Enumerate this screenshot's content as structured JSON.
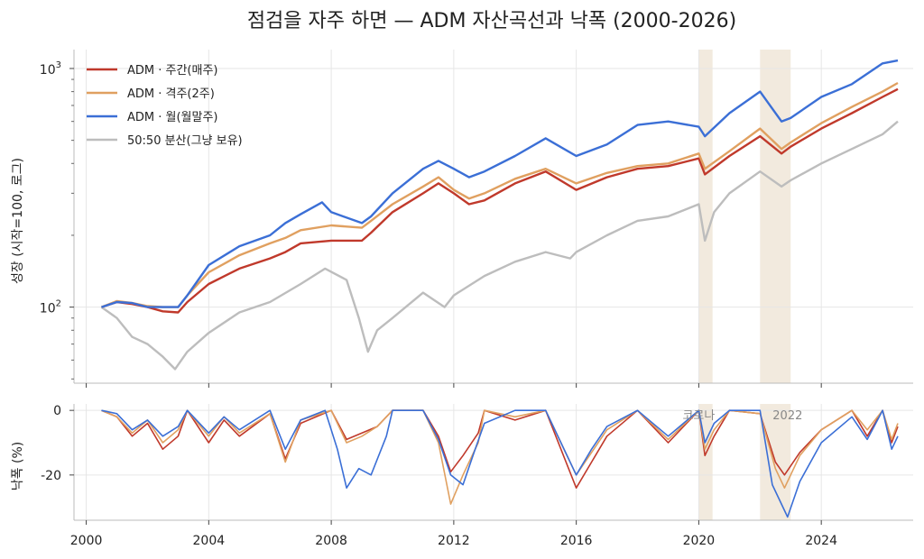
{
  "chart_data": [
    {
      "type": "line",
      "panel": "growth",
      "title": "점검을 자주 하면 — ADM 자산곡선과 낙폭 (2000-2026)",
      "ylabel": "성장 (시작=100, 로그)",
      "yscale": "log",
      "ylim": [
        48,
        1200
      ],
      "xlim": [
        1999.6,
        2027.0
      ],
      "x_ticks": [
        "2000",
        "2004",
        "2008",
        "2012",
        "2016",
        "2020",
        "2024"
      ],
      "y_ticks": [
        {
          "label": "10",
          "exp": "2",
          "value": 100
        },
        {
          "label": "10",
          "exp": "3",
          "value": 1000
        }
      ],
      "grid": true,
      "legend_position": "top-left",
      "shaded_periods": [
        [
          2020.0,
          2020.45
        ],
        [
          2022.0,
          2023.0
        ]
      ],
      "series": [
        {
          "name": "ADM · 주간(매주)",
          "color": "#c0392b",
          "x": [
            2000.5,
            2001.0,
            2001.5,
            2002.0,
            2002.5,
            2003.0,
            2003.3,
            2004.0,
            2005.0,
            2006.0,
            2006.5,
            2007.0,
            2008.0,
            2009.0,
            2009.3,
            2010.0,
            2011.0,
            2011.5,
            2012.0,
            2012.5,
            2013.0,
            2014.0,
            2015.0,
            2016.0,
            2017.0,
            2018.0,
            2019.0,
            2020.0,
            2020.2,
            2021.0,
            2022.0,
            2022.7,
            2023.0,
            2024.0,
            2025.0,
            2026.0,
            2026.5
          ],
          "y": [
            100,
            105,
            103,
            100,
            96,
            95,
            105,
            125,
            145,
            160,
            170,
            185,
            190,
            190,
            205,
            250,
            300,
            330,
            300,
            270,
            280,
            330,
            370,
            310,
            350,
            380,
            390,
            420,
            360,
            430,
            520,
            440,
            470,
            560,
            650,
            760,
            820
          ]
        },
        {
          "name": "ADM · 격주(2주)",
          "color": "#e0a060",
          "x": [
            2000.5,
            2001.0,
            2001.5,
            2002.0,
            2002.5,
            2003.0,
            2003.3,
            2004.0,
            2005.0,
            2006.0,
            2006.5,
            2007.0,
            2008.0,
            2009.0,
            2009.3,
            2010.0,
            2011.0,
            2011.5,
            2012.0,
            2012.5,
            2013.0,
            2014.0,
            2015.0,
            2016.0,
            2017.0,
            2018.0,
            2019.0,
            2020.0,
            2020.2,
            2021.0,
            2022.0,
            2022.7,
            2023.0,
            2024.0,
            2025.0,
            2026.0,
            2026.5
          ],
          "y": [
            100,
            106,
            104,
            101,
            100,
            100,
            112,
            140,
            165,
            185,
            195,
            210,
            220,
            215,
            230,
            270,
            320,
            350,
            310,
            285,
            300,
            345,
            380,
            330,
            365,
            390,
            400,
            440,
            380,
            450,
            560,
            460,
            490,
            590,
            690,
            800,
            870
          ]
        },
        {
          "name": "ADM · 월(월말주)",
          "color": "#3b6fd6",
          "x": [
            2000.5,
            2001.0,
            2001.5,
            2002.0,
            2002.5,
            2003.0,
            2003.3,
            2004.0,
            2005.0,
            2006.0,
            2006.5,
            2007.0,
            2007.7,
            2008.0,
            2009.0,
            2009.3,
            2010.0,
            2011.0,
            2011.5,
            2012.0,
            2012.5,
            2013.0,
            2014.0,
            2015.0,
            2016.0,
            2017.0,
            2018.0,
            2019.0,
            2020.0,
            2020.2,
            2021.0,
            2022.0,
            2022.7,
            2023.0,
            2024.0,
            2025.0,
            2026.0,
            2026.5
          ],
          "y": [
            100,
            105,
            104,
            100,
            100,
            100,
            112,
            150,
            180,
            200,
            225,
            245,
            275,
            250,
            225,
            240,
            300,
            380,
            410,
            380,
            350,
            370,
            430,
            510,
            430,
            480,
            580,
            600,
            570,
            520,
            650,
            800,
            600,
            620,
            760,
            860,
            1050,
            1080
          ]
        },
        {
          "name": "50:50 분산(그냥 보유)",
          "color": "#bdbdbd",
          "x": [
            2000.5,
            2001.0,
            2001.5,
            2002.0,
            2002.5,
            2002.9,
            2003.3,
            2004.0,
            2005.0,
            2006.0,
            2007.0,
            2007.8,
            2008.5,
            2008.9,
            2009.2,
            2009.5,
            2010.0,
            2011.0,
            2011.7,
            2012.0,
            2013.0,
            2014.0,
            2015.0,
            2015.8,
            2016.0,
            2017.0,
            2018.0,
            2019.0,
            2020.0,
            2020.2,
            2020.5,
            2021.0,
            2022.0,
            2022.7,
            2023.0,
            2024.0,
            2025.0,
            2026.0,
            2026.5
          ],
          "y": [
            100,
            90,
            75,
            70,
            62,
            55,
            65,
            78,
            95,
            105,
            125,
            145,
            130,
            90,
            65,
            80,
            90,
            115,
            100,
            112,
            135,
            155,
            170,
            160,
            170,
            200,
            230,
            240,
            270,
            190,
            250,
            300,
            370,
            320,
            340,
            400,
            460,
            530,
            600
          ]
        }
      ]
    },
    {
      "type": "line",
      "panel": "drawdown",
      "ylabel": "낙폭 (%)",
      "ylim": [
        -34,
        2
      ],
      "xlim": [
        1999.6,
        2027.0
      ],
      "x_ticks": [
        "2000",
        "2004",
        "2008",
        "2012",
        "2016",
        "2020",
        "2024"
      ],
      "y_ticks": [
        "0",
        "-20"
      ],
      "grid": true,
      "shaded_periods": [
        [
          2020.0,
          2020.45
        ],
        [
          2022.0,
          2023.0
        ]
      ],
      "annotations": [
        {
          "text": "코로나",
          "x": 2020.0
        },
        {
          "text": "2022",
          "x": 2022.9
        }
      ],
      "series": [
        {
          "name": "ADM · 주간(매주)",
          "color": "#c0392b",
          "x": [
            2000.5,
            2001.0,
            2001.5,
            2002.0,
            2002.5,
            2003.0,
            2003.3,
            2004.0,
            2004.5,
            2005.0,
            2006.0,
            2006.5,
            2007.0,
            2008.0,
            2008.5,
            2009.0,
            2009.5,
            2010.0,
            2011.0,
            2011.5,
            2011.9,
            2012.3,
            2012.8,
            2013.0,
            2014.0,
            2015.0,
            2016.0,
            2016.5,
            2017.0,
            2018.0,
            2019.0,
            2020.0,
            2020.2,
            2020.5,
            2021.0,
            2022.0,
            2022.5,
            2022.8,
            2023.3,
            2024.0,
            2025.0,
            2025.5,
            2026.0,
            2026.3,
            2026.5
          ],
          "y": [
            0,
            -2,
            -8,
            -4,
            -12,
            -8,
            0,
            -10,
            -3,
            -8,
            -1,
            -15,
            -4,
            0,
            -9,
            -7,
            -5,
            0,
            0,
            -8,
            -19,
            -14,
            -7,
            0,
            -3,
            0,
            -24,
            -16,
            -8,
            0,
            -10,
            0,
            -14,
            -8,
            0,
            -1,
            -16,
            -20,
            -13,
            -6,
            0,
            -8,
            0,
            -10,
            -5
          ]
        },
        {
          "name": "ADM · 격주(2주)",
          "color": "#e0a060",
          "x": [
            2000.5,
            2001.0,
            2001.5,
            2002.0,
            2002.5,
            2003.0,
            2003.3,
            2004.0,
            2004.5,
            2005.0,
            2006.0,
            2006.5,
            2007.0,
            2008.0,
            2008.5,
            2009.0,
            2009.5,
            2010.0,
            2011.0,
            2011.5,
            2011.9,
            2012.3,
            2012.8,
            2013.0,
            2014.0,
            2015.0,
            2016.0,
            2016.5,
            2017.0,
            2018.0,
            2019.0,
            2020.0,
            2020.2,
            2020.5,
            2021.0,
            2022.0,
            2022.5,
            2022.8,
            2023.3,
            2024.0,
            2025.0,
            2025.5,
            2026.0,
            2026.3,
            2026.5
          ],
          "y": [
            0,
            -2,
            -7,
            -3,
            -10,
            -6,
            0,
            -8,
            -2,
            -7,
            -1,
            -16,
            -3,
            0,
            -10,
            -8,
            -5,
            0,
            0,
            -10,
            -29,
            -20,
            -10,
            0,
            -2,
            0,
            -20,
            -13,
            -6,
            0,
            -9,
            0,
            -12,
            -6,
            0,
            -1,
            -18,
            -24,
            -14,
            -6,
            0,
            -6,
            0,
            -9,
            -4
          ]
        },
        {
          "name": "ADM · 월(월말주)",
          "color": "#3b6fd6",
          "x": [
            2000.5,
            2001.0,
            2001.5,
            2002.0,
            2002.5,
            2003.0,
            2003.3,
            2004.0,
            2004.5,
            2005.0,
            2006.0,
            2006.5,
            2007.0,
            2007.8,
            2008.2,
            2008.5,
            2008.9,
            2009.3,
            2009.8,
            2010.0,
            2011.0,
            2011.5,
            2011.9,
            2012.3,
            2012.7,
            2013.0,
            2014.0,
            2015.0,
            2016.0,
            2016.5,
            2017.0,
            2018.0,
            2019.0,
            2020.0,
            2020.2,
            2020.5,
            2021.0,
            2022.0,
            2022.4,
            2022.9,
            2023.3,
            2024.0,
            2025.0,
            2025.5,
            2026.0,
            2026.3,
            2026.5
          ],
          "y": [
            0,
            -1,
            -6,
            -3,
            -8,
            -5,
            0,
            -7,
            -2,
            -6,
            0,
            -12,
            -3,
            0,
            -12,
            -24,
            -18,
            -20,
            -8,
            0,
            0,
            -9,
            -20,
            -23,
            -12,
            -4,
            0,
            0,
            -20,
            -12,
            -5,
            0,
            -8,
            0,
            -10,
            -4,
            0,
            0,
            -23,
            -33,
            -22,
            -10,
            -2,
            -9,
            0,
            -12,
            -8
          ]
        }
      ]
    }
  ]
}
